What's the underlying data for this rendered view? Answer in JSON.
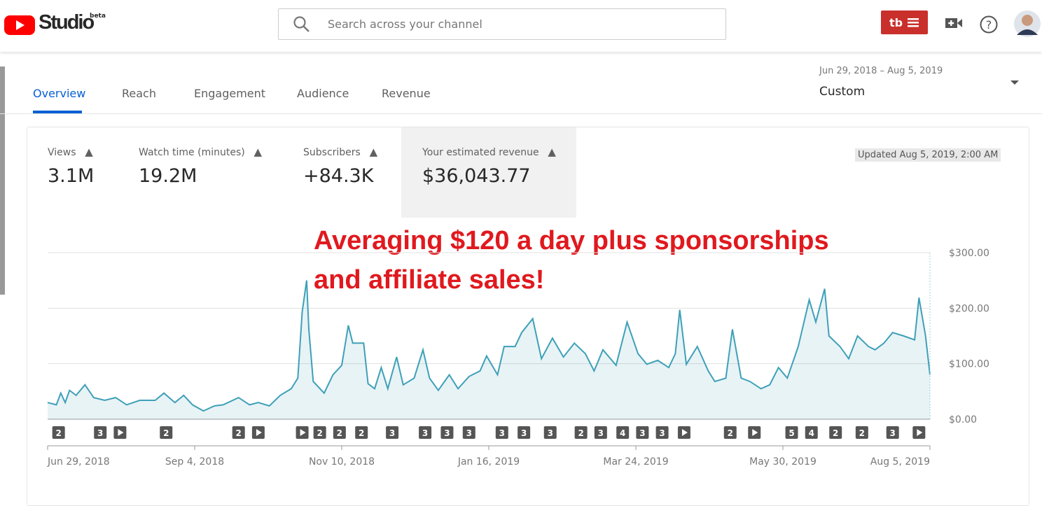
{
  "header": {
    "logo": "Studio",
    "badge": "beta",
    "search_placeholder": "Search across your channel"
  },
  "tabs": [
    "Overview",
    "Reach",
    "Engagement",
    "Audience",
    "Revenue"
  ],
  "date_range": {
    "range": "Jun 29, 2018 – Aug 5, 2019",
    "preset": "Custom"
  },
  "metrics": [
    {
      "label": "Views",
      "value": "3.1M"
    },
    {
      "label": "Watch time (minutes)",
      "value": "19.2M"
    },
    {
      "label": "Subscribers",
      "value": "+84.3K"
    },
    {
      "label": "Your estimated revenue",
      "value": "$36,043.77"
    }
  ],
  "updated": "Updated Aug 5, 2019, 2:00 AM",
  "chart_data": {
    "type": "line",
    "annotations": [
      "Averaging $120 a day plus sponsorships",
      "and affiliate sales!"
    ],
    "x": [
      0,
      4,
      6,
      8,
      10,
      13,
      17,
      21,
      26,
      31,
      36,
      42,
      49,
      53,
      58,
      62,
      66,
      71,
      76,
      80,
      87,
      92,
      96,
      101,
      106,
      111,
      114,
      116,
      118,
      119,
      121,
      126,
      130,
      134,
      137,
      139,
      144,
      146,
      149,
      152,
      155,
      159,
      162,
      167,
      171,
      174,
      178,
      183,
      187,
      192,
      197,
      200,
      205,
      208,
      213,
      216,
      221,
      225,
      230,
      235,
      240,
      245,
      249,
      253,
      259,
      264,
      269,
      273,
      278,
      283,
      286,
      288,
      291,
      296,
      301,
      304,
      309,
      312,
      316,
      320,
      325,
      329,
      333,
      337,
      342,
      347,
      350,
      354,
      356,
      361,
      365,
      369,
      374,
      377,
      381,
      385,
      390,
      395,
      397,
      400,
      402
    ],
    "series": [
      {
        "color": "#3ea0b8",
        "values": [
          30,
          26,
          47,
          30,
          52,
          43,
          62,
          39,
          34,
          39,
          26,
          34,
          34,
          47,
          30,
          43,
          26,
          15,
          24,
          26,
          39,
          26,
          30,
          24,
          43,
          55,
          74,
          194,
          250,
          162,
          68,
          47,
          80,
          97,
          169,
          137,
          137,
          64,
          55,
          93,
          55,
          112,
          62,
          74,
          125,
          74,
          52,
          80,
          55,
          77,
          87,
          114,
          80,
          131,
          131,
          156,
          181,
          109,
          146,
          112,
          137,
          118,
          87,
          125,
          97,
          175,
          118,
          99,
          106,
          93,
          118,
          197,
          99,
          131,
          87,
          68,
          74,
          162,
          74,
          68,
          55,
          62,
          93,
          74,
          131,
          215,
          175,
          235,
          150,
          131,
          109,
          150,
          131,
          125,
          137,
          156,
          150,
          143,
          219,
          150,
          80
        ]
      }
    ],
    "xlim": [
      0,
      402
    ],
    "xticks": [
      {
        "value": 0,
        "label": "Jun 29, 2018"
      },
      {
        "value": 67,
        "label": "Sep 4, 2018"
      },
      {
        "value": 134,
        "label": "Nov 10, 2018"
      },
      {
        "value": 201,
        "label": "Jan 16, 2019"
      },
      {
        "value": 268,
        "label": "Mar 24, 2019"
      },
      {
        "value": 335,
        "label": "May 30, 2019"
      },
      {
        "value": 402,
        "label": "Aug 5, 2019"
      }
    ],
    "ylim": [
      0,
      300
    ],
    "yticks": [
      {
        "value": 0,
        "label": "$0.00"
      },
      {
        "value": 100,
        "label": "$100.00"
      },
      {
        "value": 200,
        "label": "$200.00"
      },
      {
        "value": 300,
        "label": "$300.00"
      }
    ],
    "grid": true,
    "marker_counts": [
      2,
      3,
      2,
      2,
      2,
      2,
      2,
      3,
      3,
      3,
      3,
      3,
      3,
      3,
      2,
      3,
      4,
      3,
      3,
      2,
      5,
      4,
      2,
      2,
      3
    ],
    "marker_x": [
      5,
      24,
      54,
      87,
      124,
      133,
      143,
      157,
      172,
      182,
      192,
      207,
      217,
      229,
      243,
      252,
      262,
      271,
      280,
      311,
      339,
      348,
      359,
      371,
      385
    ],
    "video_marker_x": [
      33,
      96,
      116,
      290,
      322,
      397
    ]
  }
}
